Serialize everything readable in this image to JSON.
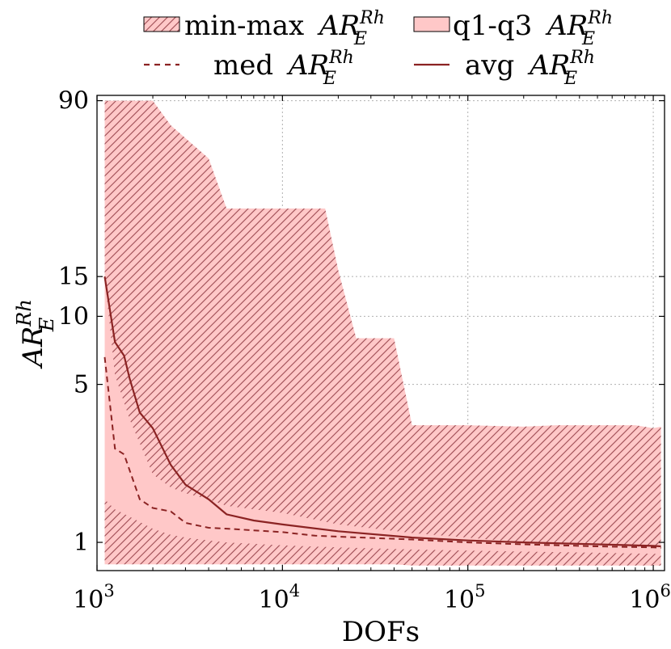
{
  "chart_data": {
    "type": "area",
    "xlabel": "DOFs",
    "ylabel_main": "AR",
    "ylabel_sup": "Rh",
    "ylabel_sub": "E",
    "x_scale": "log",
    "y_scale": "log",
    "xlim": [
      1000,
      1150000
    ],
    "ylim": [
      0.75,
      95
    ],
    "x_ticks": [
      1000,
      10000,
      100000,
      1000000
    ],
    "x_tick_labels": [
      {
        "base": "10",
        "exp": "3"
      },
      {
        "base": "10",
        "exp": "4"
      },
      {
        "base": "10",
        "exp": "5"
      },
      {
        "base": "10",
        "exp": "6"
      }
    ],
    "y_ticks": [
      1,
      5,
      10,
      15,
      90
    ],
    "y_tick_labels": [
      "1",
      "5",
      "10",
      "15",
      "90"
    ],
    "grid": true,
    "legend_placement": "top-outside",
    "legend": [
      {
        "label_prefix": "min-max",
        "sym": "hatch"
      },
      {
        "label_prefix": "q1-q3",
        "sym": "fill"
      },
      {
        "label_prefix": "med",
        "sym": "dashed"
      },
      {
        "label_prefix": "avg",
        "sym": "solid"
      }
    ],
    "colors": {
      "fill": "#ffc8c8",
      "hatch": "#9c4a52",
      "line": "#8b2323",
      "grid": "#b0b0b0"
    },
    "series": [
      {
        "name": "min-max",
        "x": [
          1100,
          1250,
          1500,
          2000,
          2500,
          4000,
          5000,
          10000,
          17000,
          20000,
          25000,
          40000,
          50000,
          100000,
          200000,
          300000,
          500000,
          800000,
          1000000,
          1100000
        ],
        "lower": [
          0.8,
          0.8,
          0.8,
          0.8,
          0.8,
          0.8,
          0.8,
          0.8,
          0.8,
          0.8,
          0.8,
          0.8,
          0.79,
          0.79,
          0.79,
          0.79,
          0.79,
          0.79,
          0.79,
          0.79
        ],
        "upper": [
          90,
          90,
          90,
          90,
          70,
          50,
          30,
          30,
          30,
          16,
          8,
          8,
          3.3,
          3.3,
          3.25,
          3.3,
          3.3,
          3.3,
          3.2,
          3.25
        ]
      },
      {
        "name": "q1-q3",
        "x": [
          1100,
          1250,
          1500,
          2000,
          2500,
          3000,
          4000,
          5000,
          10000,
          20000,
          50000,
          100000,
          200000,
          500000,
          1000000,
          1100000
        ],
        "lower": [
          1.55,
          1.4,
          1.3,
          1.15,
          1.08,
          1.05,
          1.02,
          1.0,
          0.97,
          0.95,
          0.93,
          0.92,
          0.91,
          0.9,
          0.89,
          0.89
        ],
        "upper": [
          15,
          5.5,
          3.5,
          2.0,
          1.75,
          1.65,
          1.55,
          1.45,
          1.35,
          1.2,
          1.1,
          1.05,
          1.0,
          0.98,
          0.95,
          0.95
        ]
      },
      {
        "name": "med",
        "x": [
          1100,
          1250,
          1400,
          1700,
          2000,
          2500,
          3000,
          4000,
          5000,
          7000,
          10000,
          15000,
          20000,
          50000,
          100000,
          200000,
          500000,
          1000000,
          1100000
        ],
        "values": [
          6.6,
          2.6,
          2.45,
          1.55,
          1.42,
          1.37,
          1.22,
          1.16,
          1.15,
          1.13,
          1.11,
          1.07,
          1.06,
          1.03,
          1.0,
          0.98,
          0.96,
          0.95,
          0.945
        ]
      },
      {
        "name": "avg",
        "x": [
          1100,
          1250,
          1400,
          1500,
          1700,
          2000,
          2500,
          3000,
          4000,
          5000,
          7000,
          10000,
          20000,
          50000,
          100000,
          200000,
          500000,
          1000000,
          1100000
        ],
        "values": [
          15,
          7.7,
          6.7,
          5.3,
          3.75,
          3.2,
          2.2,
          1.8,
          1.55,
          1.33,
          1.25,
          1.2,
          1.12,
          1.05,
          1.02,
          1.0,
          0.98,
          0.965,
          0.96
        ]
      }
    ]
  }
}
